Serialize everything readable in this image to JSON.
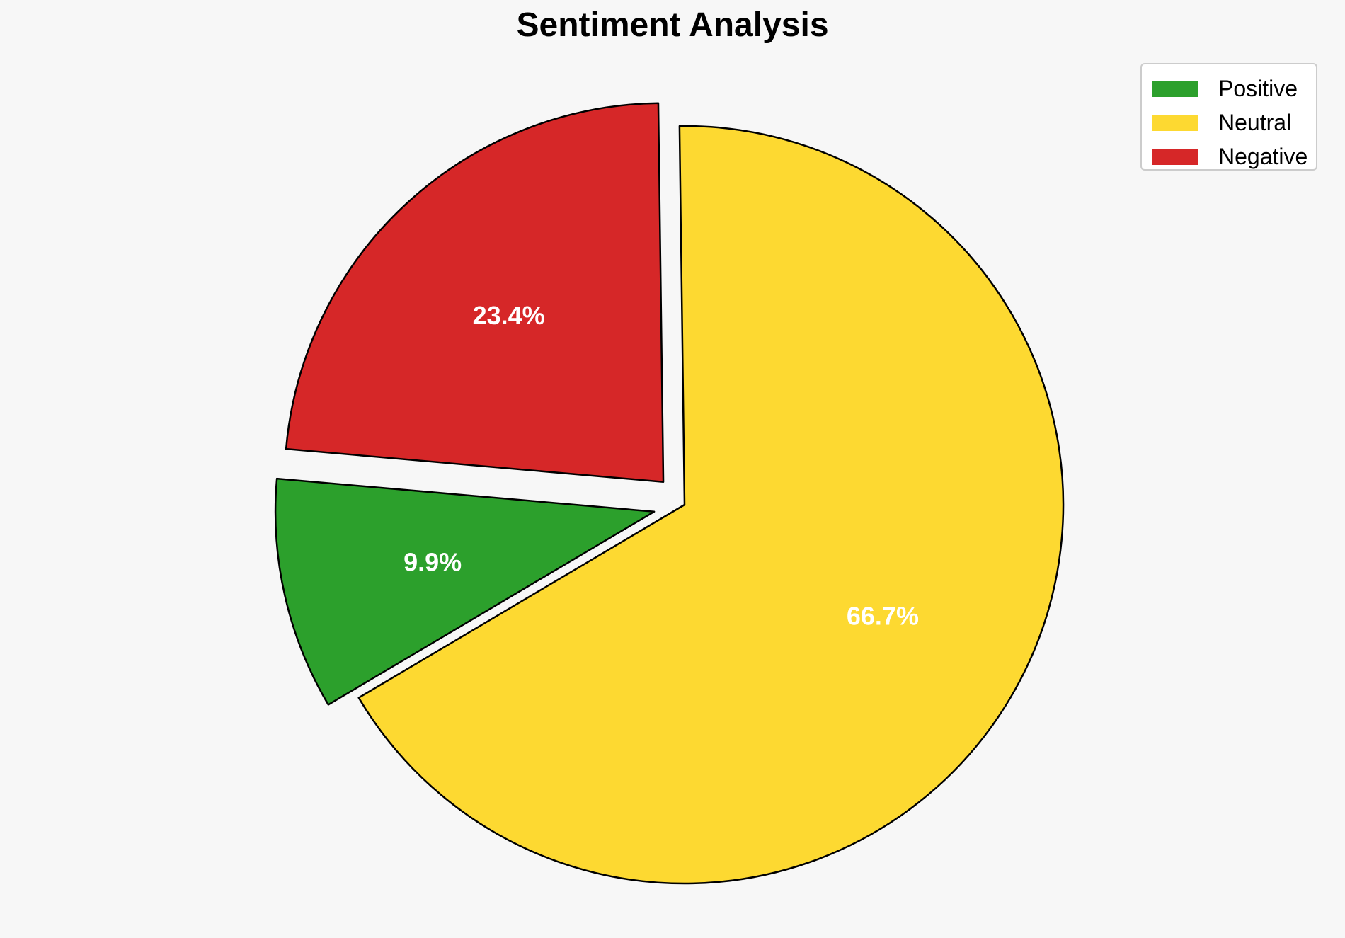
{
  "chart_data": {
    "type": "pie",
    "title": "Sentiment Analysis",
    "slices": [
      {
        "label": "Positive",
        "value": 9.9,
        "display": "9.9%",
        "color": "#2ca02c",
        "exploded": true
      },
      {
        "label": "Neutral",
        "value": 66.7,
        "display": "66.7%",
        "color": "#fdd931",
        "exploded": false
      },
      {
        "label": "Negative",
        "value": 23.4,
        "display": "23.4%",
        "color": "#d62728",
        "exploded": true
      }
    ],
    "legend_position": "top-right",
    "start_angle_degrees": 175,
    "direction": "counterclockwise",
    "label_color": "#ffffff",
    "edge_color": "#000000"
  }
}
